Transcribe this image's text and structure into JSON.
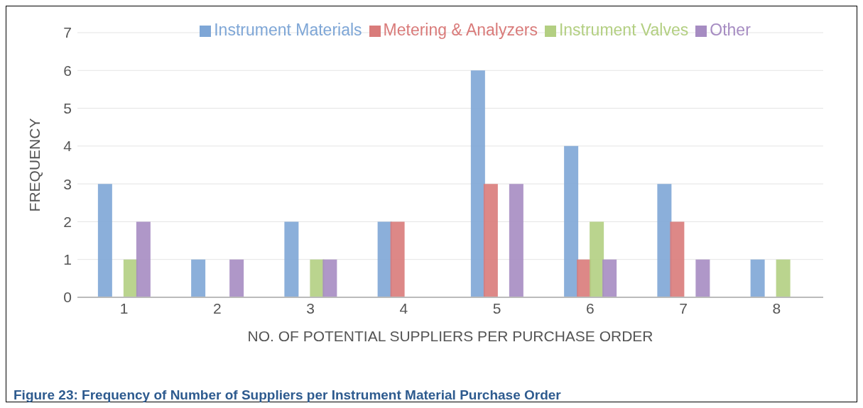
{
  "chart_data": {
    "type": "bar",
    "xlabel": "NO. OF POTENTIAL SUPPLIERS PER PURCHASE ORDER",
    "ylabel": "FREQUENCY",
    "categories": [
      "1",
      "2",
      "3",
      "4",
      "5",
      "6",
      "7",
      "8"
    ],
    "series": [
      {
        "name": "Instrument Materials",
        "color": "#7ea6d6",
        "values": [
          3,
          1,
          2,
          2,
          6,
          4,
          3,
          1
        ]
      },
      {
        "name": "Metering & Analyzers",
        "color": "#d97b7a",
        "values": [
          0,
          0,
          0,
          2,
          3,
          1,
          2,
          0
        ]
      },
      {
        "name": "Instrument Valves",
        "color": "#b3cf82",
        "values": [
          1,
          0,
          1,
          0,
          0,
          2,
          0,
          1
        ]
      },
      {
        "name": "Other",
        "color": "#a68cc2",
        "values": [
          2,
          1,
          1,
          0,
          3,
          1,
          1,
          0
        ]
      }
    ],
    "ylim": [
      0,
      7
    ],
    "yticks": [
      0,
      1,
      2,
      3,
      4,
      5,
      6,
      7
    ],
    "grid": "y",
    "legend": "top",
    "annotations": [
      "Figure 23: Frequency of Number of Suppliers per Instrument Material Purchase Order"
    ]
  }
}
